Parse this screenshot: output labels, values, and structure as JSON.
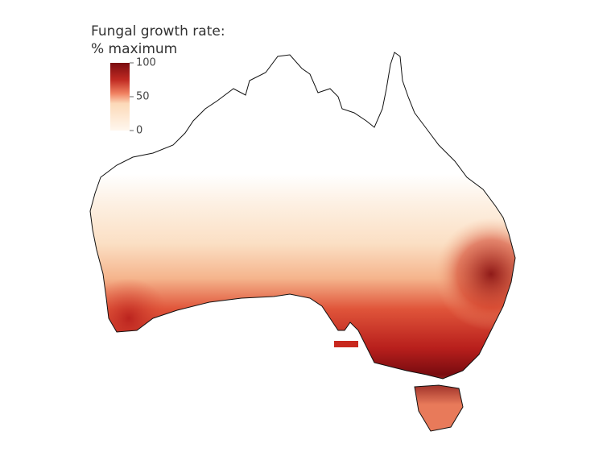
{
  "legend": {
    "title": [
      "Fungal growth rate:",
      "% maximum"
    ],
    "ticks": [
      100,
      50,
      0
    ]
  }
}
